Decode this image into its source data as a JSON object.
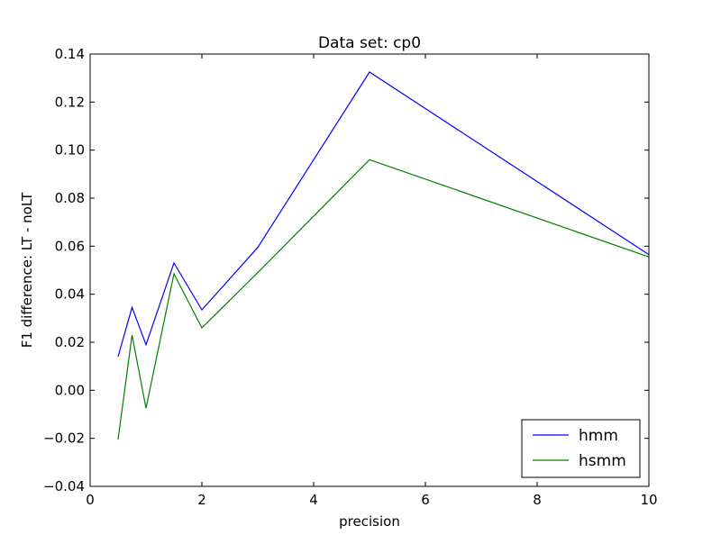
{
  "chart_data": {
    "type": "line",
    "title": "Data set: cp0",
    "xlabel": "precision",
    "ylabel": "F1 difference: LT - noLT",
    "xlim": [
      0,
      10
    ],
    "ylim": [
      -0.04,
      0.14
    ],
    "x_ticks": [
      0,
      2,
      4,
      6,
      8,
      10
    ],
    "x_tick_labels": [
      "0",
      "2",
      "4",
      "6",
      "8",
      "10"
    ],
    "y_ticks": [
      -0.04,
      -0.02,
      0.0,
      0.02,
      0.04,
      0.06,
      0.08,
      0.1,
      0.12,
      0.14
    ],
    "y_tick_labels": [
      "−0.04",
      "−0.02",
      "0.00",
      "0.02",
      "0.04",
      "0.06",
      "0.08",
      "0.10",
      "0.12",
      "0.14"
    ],
    "grid": false,
    "legend_position": "bottom-right",
    "series": [
      {
        "name": "hmm",
        "color": "#0000ff",
        "x": [
          0.5,
          0.75,
          1.0,
          1.5,
          2.0,
          3.0,
          5.0,
          10.0
        ],
        "y": [
          0.014,
          0.0345,
          0.019,
          0.053,
          0.0335,
          0.0595,
          0.1325,
          0.0565
        ]
      },
      {
        "name": "hsmm",
        "color": "#008000",
        "x": [
          0.5,
          0.75,
          1.0,
          1.5,
          2.0,
          3.0,
          5.0,
          10.0
        ],
        "y": [
          -0.0205,
          0.023,
          -0.0075,
          0.0485,
          0.026,
          0.049,
          0.096,
          0.0555
        ]
      }
    ]
  }
}
